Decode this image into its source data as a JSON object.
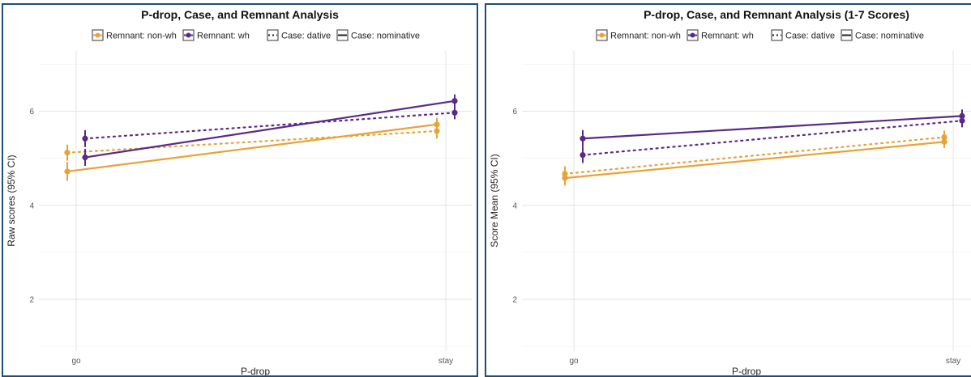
{
  "chart_data": [
    {
      "type": "line",
      "title": "P-drop, Case, and Remnant Analysis",
      "xlabel": "P-drop",
      "ylabel": "Raw scores (95% CI)",
      "categories": [
        "go",
        "stay"
      ],
      "ylim": [
        0.9,
        7.3
      ],
      "yticks": [
        2,
        4,
        6
      ],
      "grid": true,
      "legend": {
        "position": "top",
        "remnant": [
          {
            "label": "Remnant: non-wh",
            "color": "#E8A23A"
          },
          {
            "label": "Remnant: wh",
            "color": "#5B2A86"
          }
        ],
        "case": [
          {
            "label": "Case: dative",
            "style": "dotted"
          },
          {
            "label": "Case: nominative",
            "style": "solid"
          }
        ]
      },
      "series": [
        {
          "remnant": "non-wh",
          "case": "nominative",
          "color": "#E8A23A",
          "style": "solid",
          "values": [
            4.72,
            5.72
          ],
          "lower": [
            4.52,
            5.58
          ],
          "upper": [
            4.92,
            5.86
          ]
        },
        {
          "remnant": "non-wh",
          "case": "dative",
          "color": "#E8A23A",
          "style": "dotted",
          "values": [
            5.12,
            5.58
          ],
          "lower": [
            4.95,
            5.42
          ],
          "upper": [
            5.29,
            5.74
          ]
        },
        {
          "remnant": "wh",
          "case": "nominative",
          "color": "#5B2A86",
          "style": "solid",
          "values": [
            5.02,
            6.22
          ],
          "lower": [
            4.84,
            6.08
          ],
          "upper": [
            5.2,
            6.36
          ]
        },
        {
          "remnant": "wh",
          "case": "dative",
          "color": "#5B2A86",
          "style": "dotted",
          "values": [
            5.42,
            5.97
          ],
          "lower": [
            5.24,
            5.83
          ],
          "upper": [
            5.6,
            6.11
          ]
        }
      ]
    },
    {
      "type": "line",
      "title": "P-drop, Case, and Remnant Analysis (1-7 Scores)",
      "xlabel": "P-drop",
      "ylabel": "Score Mean (95% CI)",
      "categories": [
        "go",
        "stay"
      ],
      "ylim": [
        0.9,
        7.3
      ],
      "yticks": [
        2,
        4,
        6
      ],
      "grid": true,
      "legend": {
        "position": "top",
        "remnant": [
          {
            "label": "Remnant: non-wh",
            "color": "#E8A23A"
          },
          {
            "label": "Remnant: wh",
            "color": "#5B2A86"
          }
        ],
        "case": [
          {
            "label": "Case: dative",
            "style": "dotted"
          },
          {
            "label": "Case: nominative",
            "style": "solid"
          }
        ]
      },
      "series": [
        {
          "remnant": "non-wh",
          "case": "nominative",
          "color": "#E8A23A",
          "style": "solid",
          "values": [
            4.58,
            5.35
          ],
          "lower": [
            4.42,
            5.22
          ],
          "upper": [
            4.74,
            5.48
          ]
        },
        {
          "remnant": "non-wh",
          "case": "dative",
          "color": "#E8A23A",
          "style": "dotted",
          "values": [
            4.67,
            5.45
          ],
          "lower": [
            4.51,
            5.31
          ],
          "upper": [
            4.83,
            5.59
          ]
        },
        {
          "remnant": "wh",
          "case": "nominative",
          "color": "#5B2A86",
          "style": "solid",
          "values": [
            5.42,
            5.9
          ],
          "lower": [
            5.24,
            5.76
          ],
          "upper": [
            5.6,
            6.04
          ]
        },
        {
          "remnant": "wh",
          "case": "dative",
          "color": "#5B2A86",
          "style": "dotted",
          "values": [
            5.07,
            5.8
          ],
          "lower": [
            4.9,
            5.66
          ],
          "upper": [
            5.24,
            5.94
          ]
        }
      ]
    }
  ]
}
